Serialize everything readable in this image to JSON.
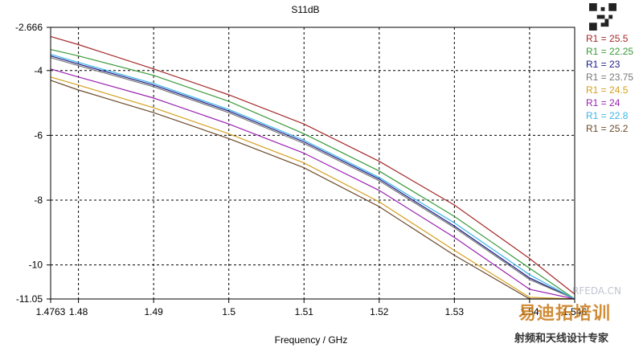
{
  "chart_data": {
    "type": "line",
    "title": "S11dB",
    "xlabel": "Frequency / GHz",
    "ylabel": "",
    "xlim": [
      1.4763,
      1.546
    ],
    "ylim": [
      -11.05,
      -2.666
    ],
    "x_ticks": [
      1.4763,
      1.48,
      1.49,
      1.5,
      1.51,
      1.52,
      1.53,
      1.54,
      1.546
    ],
    "x_tick_labels": [
      "1.4763",
      "1.48",
      "1.49",
      "1.5",
      "1.51",
      "1.52",
      "1.53",
      "1.54",
      "1.546"
    ],
    "x_gridlines": [
      1.48,
      1.49,
      1.5,
      1.51,
      1.52,
      1.53,
      1.54
    ],
    "y_ticks": [
      -2.666,
      -4,
      -6,
      -8,
      -10,
      -11.05
    ],
    "y_tick_labels": [
      "-2.666",
      "-4",
      "-6",
      "-8",
      "-10",
      "-11.05"
    ],
    "y_gridlines": [
      -4,
      -6,
      -8,
      -10
    ],
    "grid": true,
    "legend_position": "right",
    "series": [
      {
        "name": "R1 = 25.5",
        "color": "#a52a2a",
        "x": [
          1.4763,
          1.48,
          1.49,
          1.5,
          1.51,
          1.52,
          1.53,
          1.54,
          1.546
        ],
        "y": [
          -2.95,
          -3.2,
          -3.95,
          -4.75,
          -5.65,
          -6.8,
          -8.15,
          -9.8,
          -10.9
        ]
      },
      {
        "name": "R1 = 22.25",
        "color": "#3a9a3a",
        "x": [
          1.4763,
          1.48,
          1.49,
          1.5,
          1.51,
          1.52,
          1.53,
          1.54,
          1.546
        ],
        "y": [
          -3.35,
          -3.55,
          -4.15,
          -4.95,
          -5.95,
          -7.1,
          -8.5,
          -10.1,
          -11.05
        ]
      },
      {
        "name": "R1 = 23",
        "color": "#1a1a8a",
        "x": [
          1.4763,
          1.48,
          1.49,
          1.5,
          1.51,
          1.52,
          1.53,
          1.54,
          1.546
        ],
        "y": [
          -3.55,
          -3.8,
          -4.45,
          -5.25,
          -6.2,
          -7.35,
          -8.8,
          -10.4,
          -11.05
        ]
      },
      {
        "name": "R1 = 23.75",
        "color": "#777777",
        "x": [
          1.4763,
          1.48,
          1.49,
          1.5,
          1.51,
          1.52,
          1.53,
          1.54,
          1.546
        ],
        "y": [
          -3.6,
          -3.85,
          -4.5,
          -5.3,
          -6.25,
          -7.4,
          -8.85,
          -10.45,
          -11.05
        ]
      },
      {
        "name": "R1 = 24.5",
        "color": "#d4a020",
        "x": [
          1.4763,
          1.48,
          1.49,
          1.5,
          1.51,
          1.52,
          1.53,
          1.54,
          1.546
        ],
        "y": [
          -4.2,
          -4.45,
          -5.15,
          -5.95,
          -6.85,
          -8.05,
          -9.55,
          -11.0,
          -11.05
        ]
      },
      {
        "name": "R1 = 24",
        "color": "#9a22b0",
        "x": [
          1.4763,
          1.48,
          1.49,
          1.5,
          1.51,
          1.52,
          1.53,
          1.54,
          1.546
        ],
        "y": [
          -3.95,
          -4.2,
          -4.85,
          -5.65,
          -6.55,
          -7.7,
          -9.15,
          -10.75,
          -11.05
        ]
      },
      {
        "name": "R1 = 22.8",
        "color": "#3cb4e6",
        "x": [
          1.4763,
          1.48,
          1.49,
          1.5,
          1.51,
          1.52,
          1.53,
          1.54,
          1.546
        ],
        "y": [
          -3.5,
          -3.75,
          -4.4,
          -5.2,
          -6.15,
          -7.3,
          -8.7,
          -10.3,
          -11.05
        ]
      },
      {
        "name": "R1 = 25.2",
        "color": "#6b4a2a",
        "x": [
          1.4763,
          1.48,
          1.49,
          1.5,
          1.51,
          1.52,
          1.53,
          1.54,
          1.546
        ],
        "y": [
          -4.3,
          -4.6,
          -5.3,
          -6.1,
          -7.0,
          -8.2,
          -9.7,
          -11.05,
          -11.05
        ]
      }
    ]
  },
  "watermark": {
    "url": "RFEDA.CN",
    "brand": "易迪拓培训",
    "slogan": "射频和天线设计专家"
  },
  "qr_code_icon": "qr-code-icon"
}
